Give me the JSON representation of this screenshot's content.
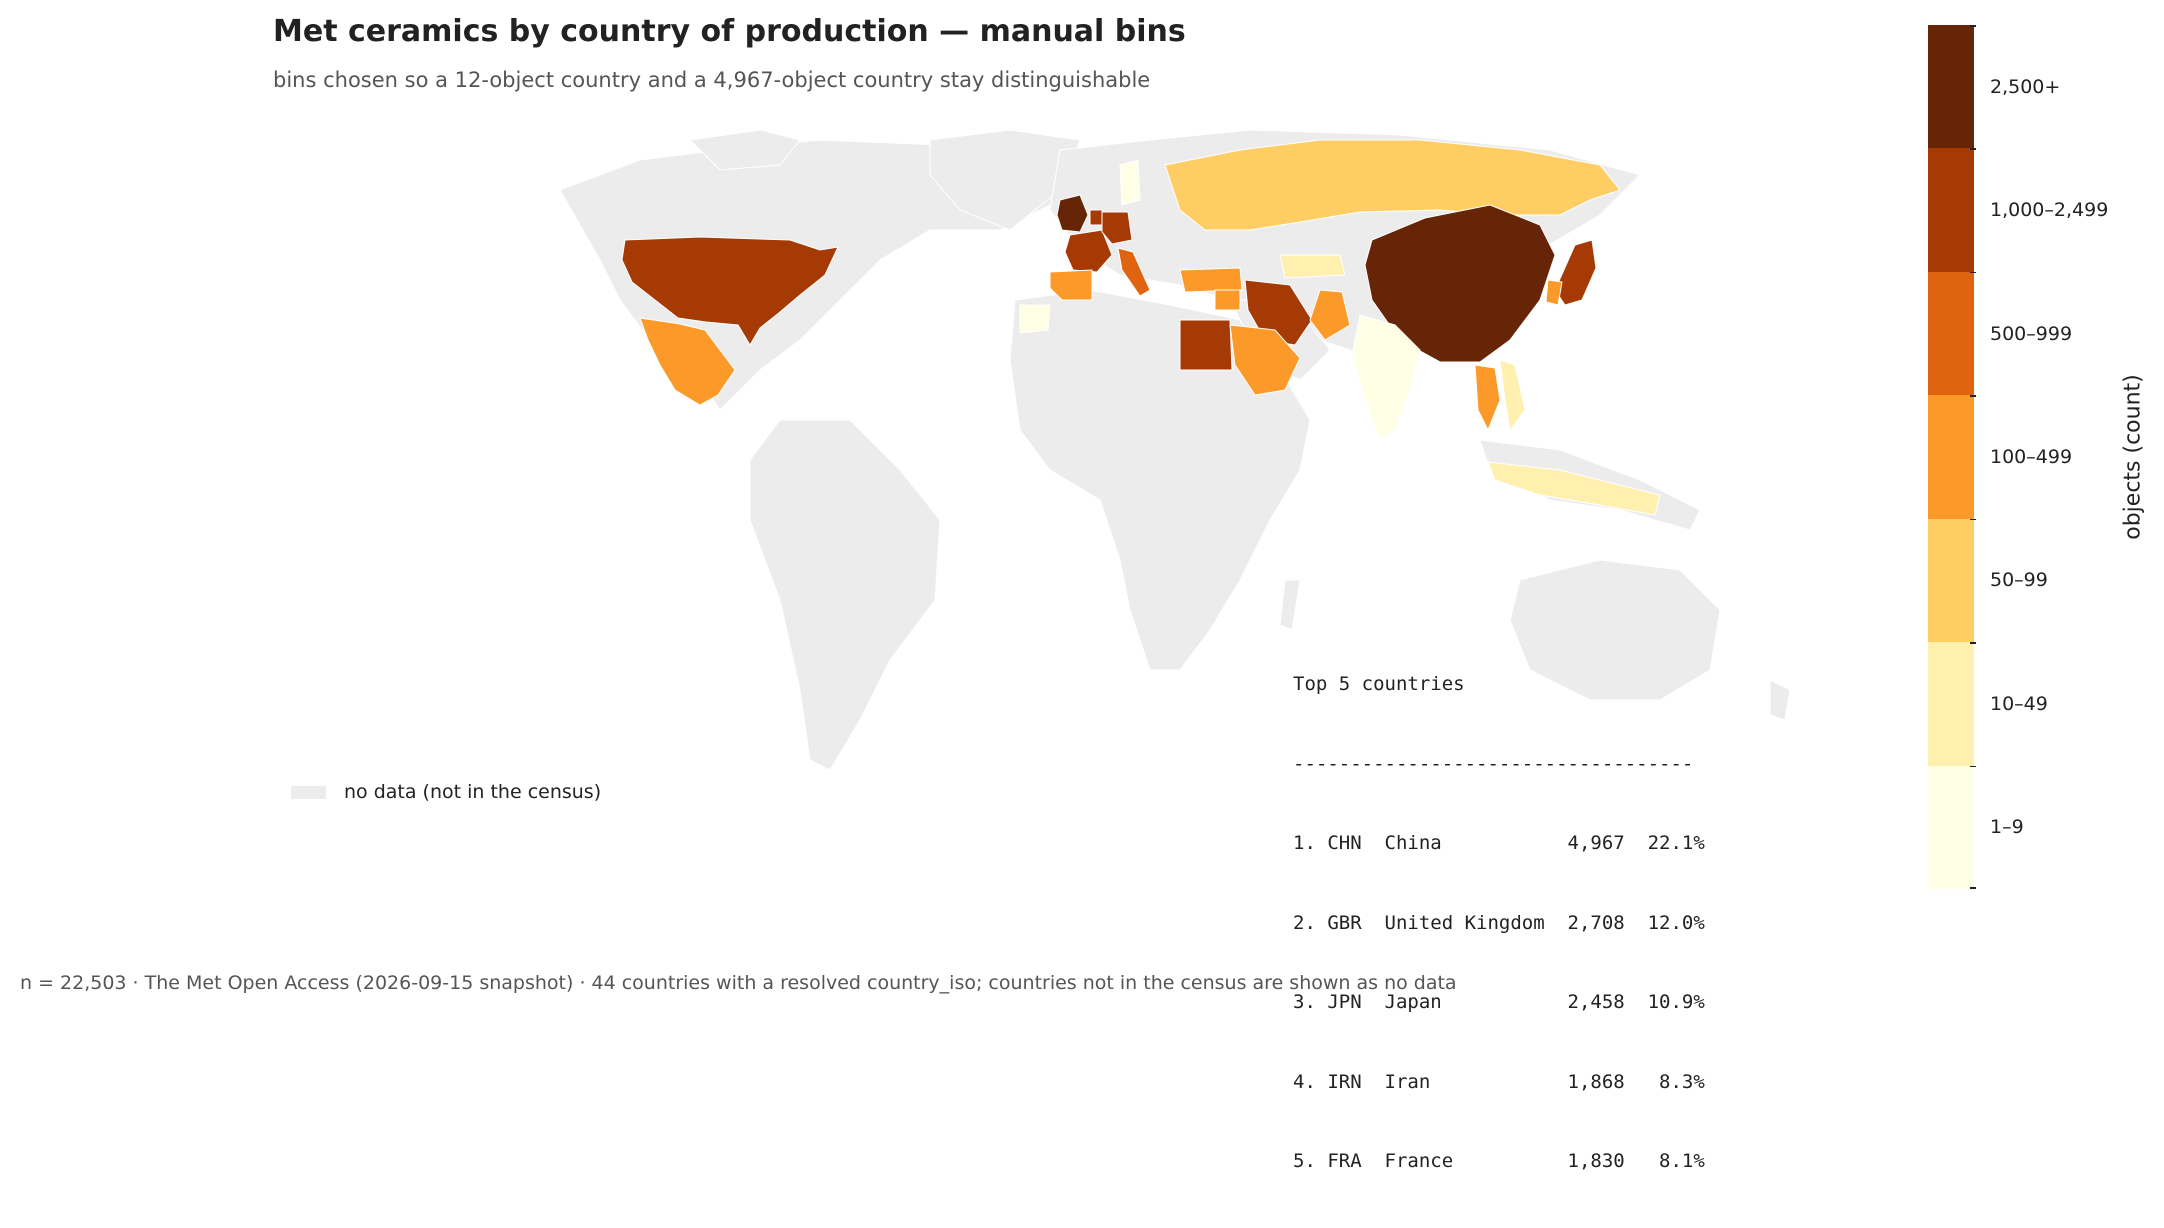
{
  "title": "Met ceramics by country of production — manual bins",
  "subtitle": "bins chosen so a 12-object country and a 4,967-object country stay distinguishable",
  "no_data_legend": {
    "label": "no data (not in the census)",
    "color": "#ececec"
  },
  "colorbar": {
    "title": "objects (count)",
    "bins": [
      {
        "label": "2,500+",
        "color": "#662506"
      },
      {
        "label": "1,000–2,499",
        "color": "#a63a04"
      },
      {
        "label": "500–999",
        "color": "#e0630f"
      },
      {
        "label": "100–499",
        "color": "#fb9a29"
      },
      {
        "label": "50–99",
        "color": "#fece65"
      },
      {
        "label": "10–49",
        "color": "#fff0b0"
      },
      {
        "label": "1–9",
        "color": "#ffffe5"
      }
    ]
  },
  "top5": {
    "title": "Top 5 countries",
    "separator": "-----------------------------------",
    "rows": [
      "1. CHN  China           4,967  22.1%",
      "2. GBR  United Kingdom  2,708  12.0%",
      "3. JPN  Japan           2,458  10.9%",
      "4. IRN  Iran            1,868   8.3%",
      "5. FRA  France          1,830   8.1%"
    ]
  },
  "footer": "n = 22,503 · The Met Open Access (2026-09-15 snapshot) · 44 countries with a resolved country_iso; countries not in the census are shown as no data",
  "chart_data": {
    "type": "choropleth",
    "title": "Met ceramics by country of production — manual bins",
    "legend_title": "objects (count)",
    "bins": [
      "1–9",
      "10–49",
      "50–99",
      "100–499",
      "500–999",
      "1,000–2,499",
      "2,500+"
    ],
    "top_countries": [
      {
        "iso": "CHN",
        "name": "China",
        "count": 4967,
        "share_pct": 22.1
      },
      {
        "iso": "GBR",
        "name": "United Kingdom",
        "count": 2708,
        "share_pct": 12.0
      },
      {
        "iso": "JPN",
        "name": "Japan",
        "count": 2458,
        "share_pct": 10.9
      },
      {
        "iso": "IRN",
        "name": "Iran",
        "count": 1868,
        "share_pct": 8.3
      },
      {
        "iso": "FRA",
        "name": "France",
        "count": 1830,
        "share_pct": 8.1
      }
    ],
    "region_bins": [
      {
        "region": "China",
        "bin": "2,500+"
      },
      {
        "region": "United Kingdom",
        "bin": "2,500+"
      },
      {
        "region": "United States",
        "bin": "1,000–2,499"
      },
      {
        "region": "Japan",
        "bin": "1,000–2,499"
      },
      {
        "region": "Iran",
        "bin": "1,000–2,499"
      },
      {
        "region": "France",
        "bin": "1,000–2,499"
      },
      {
        "region": "Germany",
        "bin": "1,000–2,499"
      },
      {
        "region": "Netherlands",
        "bin": "1,000–2,499"
      },
      {
        "region": "Egypt",
        "bin": "1,000–2,499"
      },
      {
        "region": "Italy",
        "bin": "500–999"
      },
      {
        "region": "Mexico",
        "bin": "100–499"
      },
      {
        "region": "Spain",
        "bin": "100–499"
      },
      {
        "region": "Turkey",
        "bin": "100–499"
      },
      {
        "region": "Syria",
        "bin": "100–499"
      },
      {
        "region": "Saudi Arabia",
        "bin": "100–499"
      },
      {
        "region": "Pakistan",
        "bin": "100–499"
      },
      {
        "region": "Thailand",
        "bin": "100–499"
      },
      {
        "region": "Korea",
        "bin": "100–499"
      },
      {
        "region": "Russia",
        "bin": "50–99"
      },
      {
        "region": "Indonesia",
        "bin": "10–49"
      },
      {
        "region": "Uzbekistan",
        "bin": "10–49"
      },
      {
        "region": "Vietnam",
        "bin": "10–49"
      },
      {
        "region": "India",
        "bin": "1–9"
      },
      {
        "region": "Morocco",
        "bin": "1–9"
      },
      {
        "region": "Sweden",
        "bin": "1–9"
      }
    ],
    "no_data_color": "#ececec"
  }
}
